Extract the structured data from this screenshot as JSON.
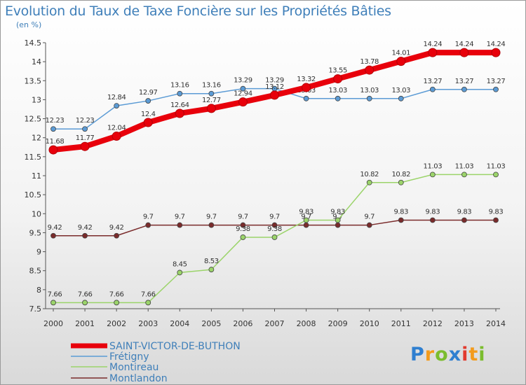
{
  "chart_data": {
    "type": "line",
    "title": "Evolution du Taux de Taxe Foncière sur les Propriétés Bâties",
    "ylabel": "(en %)",
    "xlabel": "",
    "x": [
      "2000",
      "2001",
      "2002",
      "2003",
      "2004",
      "2005",
      "2006",
      "2007",
      "2008",
      "2009",
      "2010",
      "2011",
      "2012",
      "2013",
      "2014"
    ],
    "ylim": [
      7.5,
      14.5
    ],
    "yticks": [
      "7.5",
      "8",
      "8.5",
      "9",
      "9.5",
      "10",
      "10.5",
      "11",
      "11.5",
      "12",
      "12.5",
      "13",
      "13.5",
      "14",
      "14.5"
    ],
    "grid": false,
    "legend_position": "bottom-left",
    "series": [
      {
        "name": "SAINT-VICTOR-DE-BUTHON",
        "color": "#e8000b",
        "values": [
          11.68,
          11.77,
          12.04,
          12.4,
          12.64,
          12.77,
          12.94,
          13.12,
          13.32,
          13.55,
          13.78,
          14.01,
          14.24,
          14.24,
          14.24
        ],
        "labels": [
          "11.68",
          "11.77",
          "12.04",
          "12.4",
          "12.64",
          "12.77",
          "12.94",
          "13.12",
          "13.32",
          "13.55",
          "13.78",
          "14.01",
          "14.24",
          "14.24",
          "14.24"
        ]
      },
      {
        "name": "Frétigny",
        "color": "#5b9bd5",
        "values": [
          12.23,
          12.23,
          12.84,
          12.97,
          13.16,
          13.16,
          13.29,
          13.29,
          13.03,
          13.03,
          13.03,
          13.03,
          13.27,
          13.27,
          13.27
        ],
        "labels": [
          "12.23",
          "12.23",
          "12.84",
          "12.97",
          "13.16",
          "13.16",
          "13.29",
          "13.29",
          "13.03",
          "13.03",
          "13.03",
          "13.03",
          "13.27",
          "13.27",
          "13.27"
        ]
      },
      {
        "name": "Montireau",
        "color": "#9bd46a",
        "values": [
          7.66,
          7.66,
          7.66,
          7.66,
          8.45,
          8.53,
          9.38,
          9.38,
          9.83,
          9.83,
          10.82,
          10.82,
          11.03,
          11.03,
          11.03
        ],
        "labels": [
          "7.66",
          "7.66",
          "7.66",
          "7.66",
          "8.45",
          "8.53",
          "9.38",
          "9.38",
          "9.83",
          "9.83",
          "10.82",
          "10.82",
          "11.03",
          "11.03",
          "11.03"
        ]
      },
      {
        "name": "Montlandon",
        "color": "#7a2b2b",
        "values": [
          9.42,
          9.42,
          9.42,
          9.7,
          9.7,
          9.7,
          9.7,
          9.7,
          9.7,
          9.7,
          9.7,
          9.83,
          9.83,
          9.83,
          9.83
        ],
        "labels": [
          "9.42",
          "9.42",
          "9.42",
          "9.7",
          "9.7",
          "9.7",
          "9.7",
          "9.7",
          "9.7",
          "9.7",
          "9.7",
          "9.83",
          "9.83",
          "9.83",
          "9.83"
        ]
      }
    ]
  },
  "brand": {
    "logo_text": [
      "P",
      "r",
      "o",
      "x",
      "i",
      "t",
      "i"
    ]
  }
}
